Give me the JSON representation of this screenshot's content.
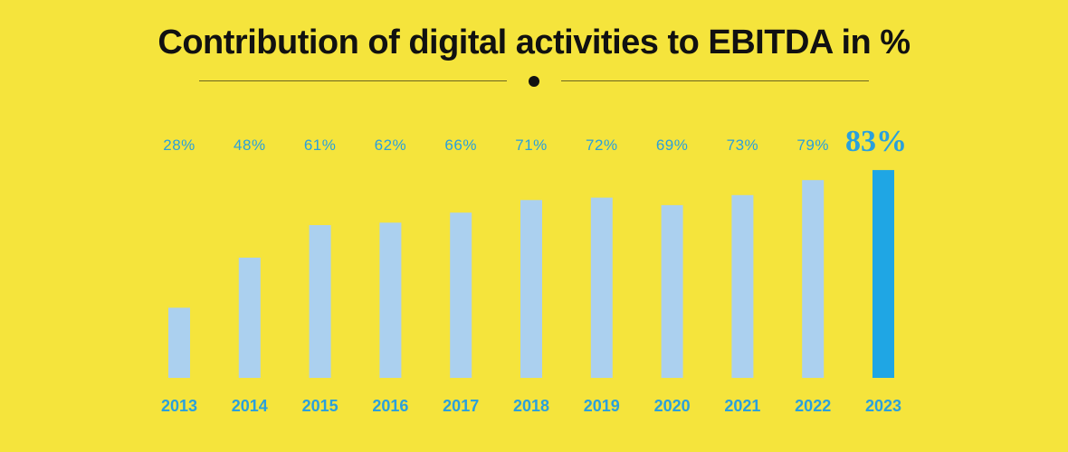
{
  "chart_data": {
    "type": "bar",
    "title": "Contribution of digital activities to EBITDA in %",
    "categories": [
      "2013",
      "2014",
      "2015",
      "2016",
      "2017",
      "2018",
      "2019",
      "2020",
      "2021",
      "2022",
      "2023"
    ],
    "values": [
      28,
      48,
      61,
      62,
      66,
      71,
      72,
      69,
      73,
      79,
      83
    ],
    "value_labels": [
      "28%",
      "48%",
      "61%",
      "62%",
      "66%",
      "71%",
      "72%",
      "69%",
      "73%",
      "79%",
      "83%"
    ],
    "highlight_index": 10,
    "xlabel": "",
    "ylabel": "",
    "ylim": [
      0,
      100
    ],
    "grid": false,
    "legend": "none",
    "colors": {
      "background": "#f5e43c",
      "bar": "#abd0ef",
      "highlight_bar": "#1fa6e4",
      "label": "#2aa0dc",
      "title": "#111111"
    }
  }
}
